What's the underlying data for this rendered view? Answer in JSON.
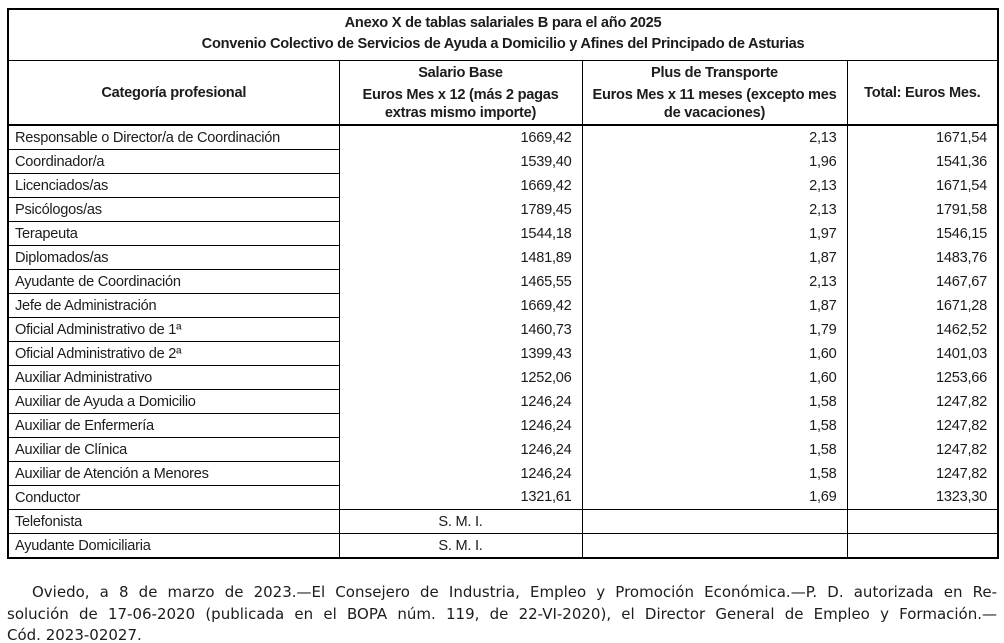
{
  "page": {
    "background": "#ffffff",
    "text_color": "#1c1c1c",
    "border_color": "#000000"
  },
  "table": {
    "title_line1": "Anexo X de tablas salariales B para el año 2025",
    "title_line2": "Convenio Colectivo de Servicios de Ayuda a Domicilio y Afines del Principado de Asturias",
    "columns": [
      {
        "header": "Categoría profesional",
        "sub": ""
      },
      {
        "header": "Salario Base",
        "sub": "Euros Mes x 12 (más 2 pagas extras mismo importe)"
      },
      {
        "header": "Plus de Transporte",
        "sub": "Euros Mes x 11 meses (excepto mes de vacaciones)"
      },
      {
        "header": "Total: Euros Mes.",
        "sub": ""
      }
    ],
    "rows": [
      {
        "category": "Responsable o Director/a de Coordinación",
        "salario": "1669,42",
        "plus": "2,13",
        "total": "1671,54"
      },
      {
        "category": "Coordinador/a",
        "salario": "1539,40",
        "plus": "1,96",
        "total": "1541,36"
      },
      {
        "category": "Licenciados/as",
        "salario": "1669,42",
        "plus": "2,13",
        "total": "1671,54"
      },
      {
        "category": "Psicólogos/as",
        "salario": "1789,45",
        "plus": "2,13",
        "total": "1791,58"
      },
      {
        "category": "Terapeuta",
        "salario": "1544,18",
        "plus": "1,97",
        "total": "1546,15"
      },
      {
        "category": "Diplomados/as",
        "salario": "1481,89",
        "plus": "1,87",
        "total": "1483,76"
      },
      {
        "category": "Ayudante de Coordinación",
        "salario": "1465,55",
        "plus": "2,13",
        "total": "1467,67"
      },
      {
        "category": "Jefe de Administración",
        "salario": "1669,42",
        "plus": "1,87",
        "total": "1671,28"
      },
      {
        "category": "Oficial Administrativo de 1ª",
        "salario": "1460,73",
        "plus": "1,79",
        "total": "1462,52"
      },
      {
        "category": "Oficial Administrativo de 2ª",
        "salario": "1399,43",
        "plus": "1,60",
        "total": "1401,03"
      },
      {
        "category": "Auxiliar Administrativo",
        "salario": "1252,06",
        "plus": "1,60",
        "total": "1253,66"
      },
      {
        "category": "Auxiliar de Ayuda a Domicilio",
        "salario": "1246,24",
        "plus": "1,58",
        "total": "1247,82"
      },
      {
        "category": "Auxiliar de Enfermería",
        "salario": "1246,24",
        "plus": "1,58",
        "total": "1247,82"
      },
      {
        "category": "Auxiliar de Clínica",
        "salario": "1246,24",
        "plus": "1,58",
        "total": "1247,82"
      },
      {
        "category": "Auxiliar de Atención a Menores",
        "salario": "1246,24",
        "plus": "1,58",
        "total": "1247,82"
      },
      {
        "category": "Conductor",
        "salario": "1321,61",
        "plus": "1,69",
        "total": "1323,30"
      }
    ],
    "smi_rows": [
      {
        "category": "Telefonista",
        "salario": "S. M. I.",
        "plus": "",
        "total": ""
      },
      {
        "category": "Ayudante Domiciliaria",
        "salario": "S. M. I.",
        "plus": "",
        "total": ""
      }
    ]
  },
  "footer": {
    "lines": [
      "Oviedo, a 8 de marzo de 2023.—El Consejero de Industria, Empleo y Promoción Económica.—P. D. autorizada en Re-",
      "solución de 17-06-2020 (publicada en el BOPA núm. 119, de 22-VI-2020), el Director General de Empleo y Formación.—",
      "Cód. 2023-02027."
    ]
  }
}
